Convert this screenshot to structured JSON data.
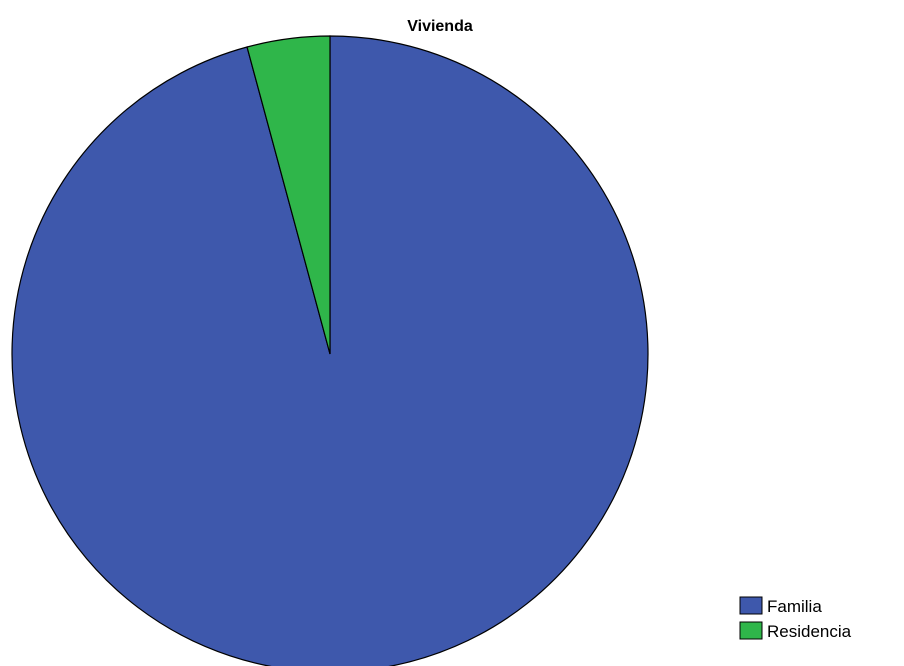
{
  "chart_data": {
    "type": "pie",
    "title": "Vivienda",
    "categories": [
      "Familia",
      "Residencia"
    ],
    "values": [
      95.8,
      4.2
    ],
    "colors": [
      "#3e58ac",
      "#2fb64a"
    ],
    "outline_color": "#000000",
    "legend": {
      "placement": "bottom-right",
      "entries": [
        "Familia",
        "Residencia"
      ]
    },
    "start_angle": "12 o'clock",
    "direction": "clockwise"
  }
}
